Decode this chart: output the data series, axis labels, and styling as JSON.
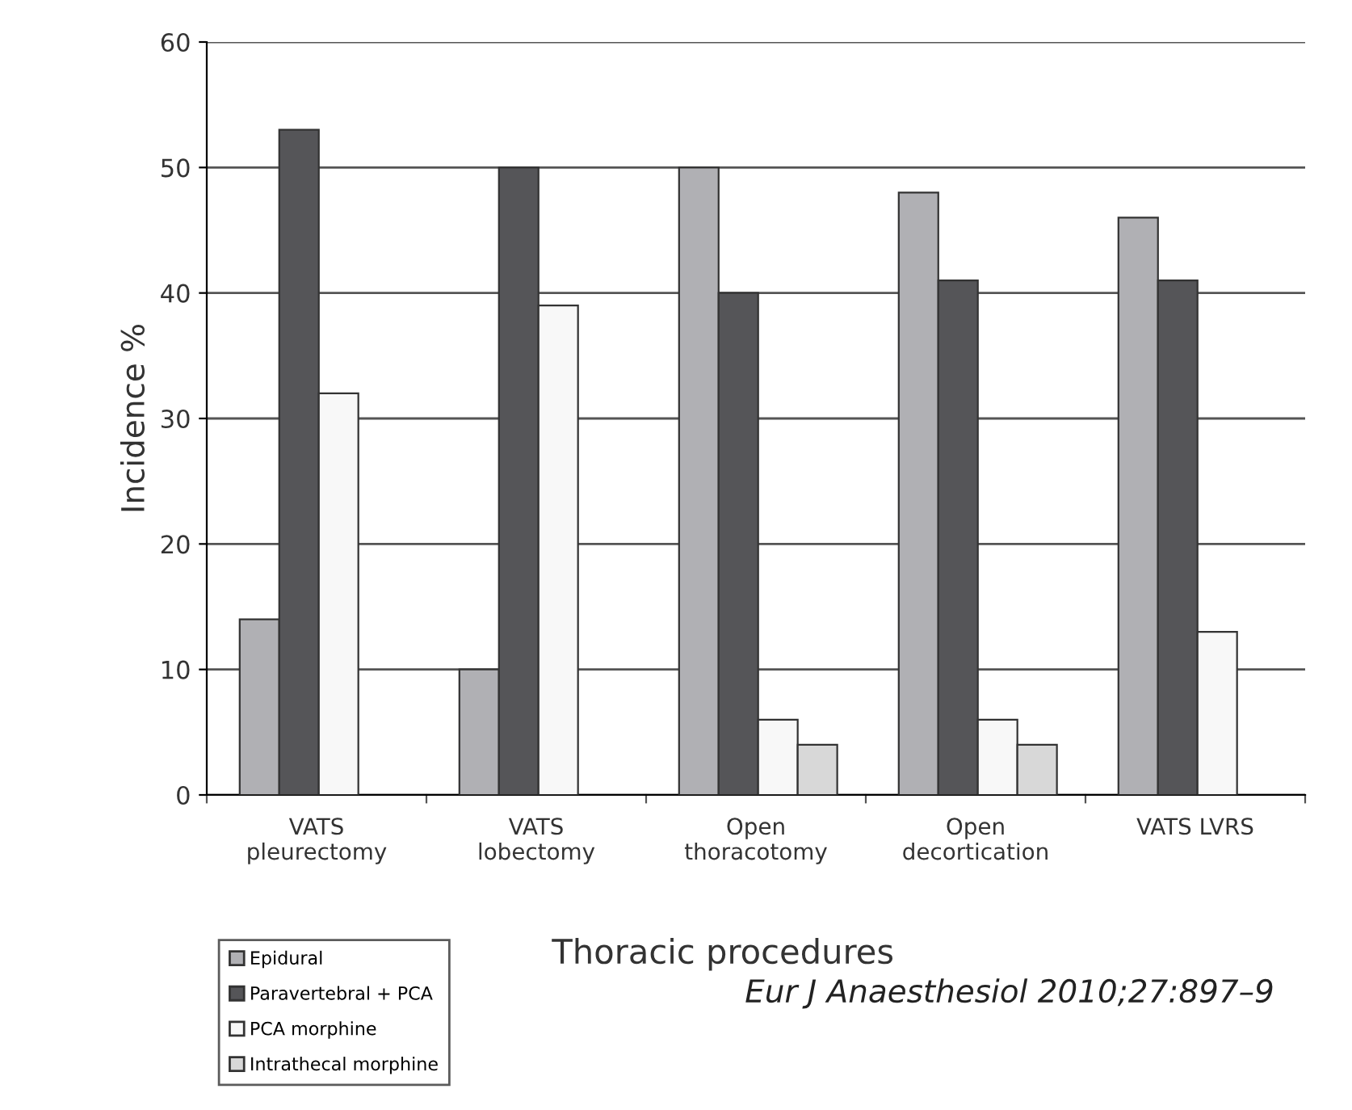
{
  "chart_data": {
    "type": "bar",
    "xlabel": "Thoracic procedures",
    "ylabel": "Incidence %",
    "categories": [
      "VATS\npleurectomy",
      "VATS\nlobectomy",
      "Open\nthoracotomy",
      "Open\ndecortication",
      "VATS LVRS"
    ],
    "series": [
      {
        "name": "Epidural",
        "color": "#b0b0b4",
        "values": [
          14,
          10,
          50,
          48,
          46
        ]
      },
      {
        "name": "Paravertebral + PCA",
        "color": "#555558",
        "values": [
          53,
          50,
          40,
          41,
          41
        ]
      },
      {
        "name": "PCA morphine",
        "color": "#f8f8f8",
        "values": [
          32,
          39,
          6,
          6,
          13
        ]
      },
      {
        "name": "Intrathecal morphine",
        "color": "#d8d8d8",
        "values": [
          null,
          null,
          4,
          4,
          null
        ]
      }
    ],
    "ylim": [
      0,
      60
    ],
    "yticks": [
      0,
      10,
      20,
      30,
      40,
      50,
      60
    ],
    "grid": "y",
    "legend": "bottom left",
    "annotations": [
      "Eur J Anaesthesiol 2010;27:897–9"
    ]
  }
}
